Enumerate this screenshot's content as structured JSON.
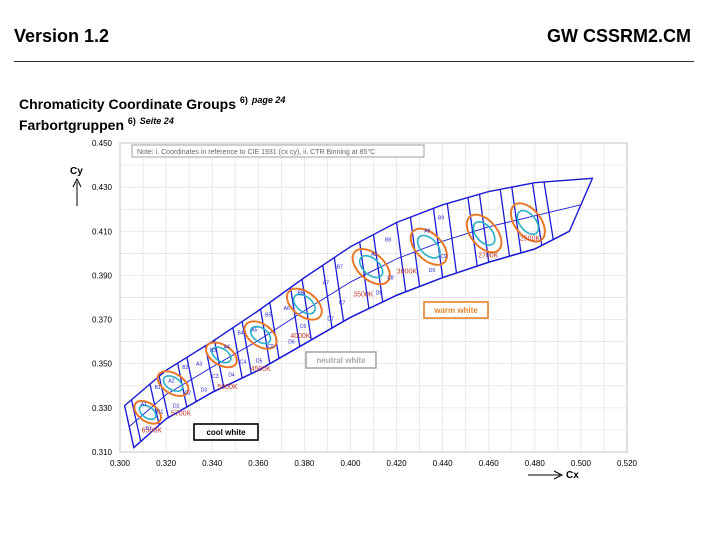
{
  "header": {
    "version": "Version 1.2",
    "doc_code": "GW CSSRM2.CM"
  },
  "title": {
    "line1": "Chromaticity Coordinate Groups",
    "line1_ref": "6)",
    "line1_page": "page 24",
    "line2": "Farbortgruppen",
    "line2_ref": "6)",
    "line2_page": "Seite 24"
  },
  "chart_data": {
    "type": "scatter",
    "note": "Note: i. Coordinates in reference to CIE 1931 (cx cy), ii. CTR Binning at 85°C",
    "xlabel": "Cx",
    "ylabel": "Cy",
    "xlim": [
      0.3,
      0.52
    ],
    "ylim": [
      0.31,
      0.45
    ],
    "x_ticks": [
      "0.300",
      "0.320",
      "0.340",
      "0.360",
      "0.380",
      "0.400",
      "0.420",
      "0.440",
      "0.460",
      "0.480",
      "0.500",
      "0.520"
    ],
    "y_ticks": [
      "0.450",
      "0.430",
      "0.410",
      "0.390",
      "0.370",
      "0.350",
      "0.330",
      "0.310"
    ],
    "grid": true,
    "region_labels": [
      "cool white",
      "neutral white",
      "warm white"
    ],
    "region_colors": {
      "cool white": "#000000",
      "neutral white": "#a8a8a8",
      "warm white": "#e8822a"
    },
    "band_color": "#1b1bd4",
    "ellipse_outer_color": "#e8782a",
    "ellipse_inner_color": "#2bb0c8",
    "cct_groups": [
      {
        "cct": "6500K",
        "x": 0.312,
        "y": 0.328
      },
      {
        "cct": "5700K",
        "x": 0.323,
        "y": 0.341
      },
      {
        "cct": "5000K",
        "x": 0.344,
        "y": 0.354
      },
      {
        "cct": "4500K",
        "x": 0.361,
        "y": 0.363
      },
      {
        "cct": "4000K",
        "x": 0.38,
        "y": 0.377
      },
      {
        "cct": "3500K",
        "x": 0.409,
        "y": 0.394
      },
      {
        "cct": "3000K",
        "x": 0.434,
        "y": 0.403
      },
      {
        "cct": "2700K",
        "x": 0.458,
        "y": 0.409
      },
      {
        "cct": "2500K",
        "x": 0.477,
        "y": 0.414
      }
    ],
    "cct_label_color": "#c0392b",
    "bin_labels": [
      "A1",
      "B1",
      "C1",
      "D1",
      "A2",
      "B2",
      "C2",
      "D2",
      "A3",
      "B3",
      "C3",
      "D3",
      "A4",
      "B4",
      "C4",
      "D4",
      "A5",
      "B5",
      "C5",
      "D5",
      "A6",
      "B6",
      "C6",
      "D6",
      "A7",
      "B7",
      "C7",
      "D7",
      "A8",
      "B8",
      "C8",
      "D8",
      "A9",
      "B9",
      "C9",
      "D9"
    ]
  }
}
